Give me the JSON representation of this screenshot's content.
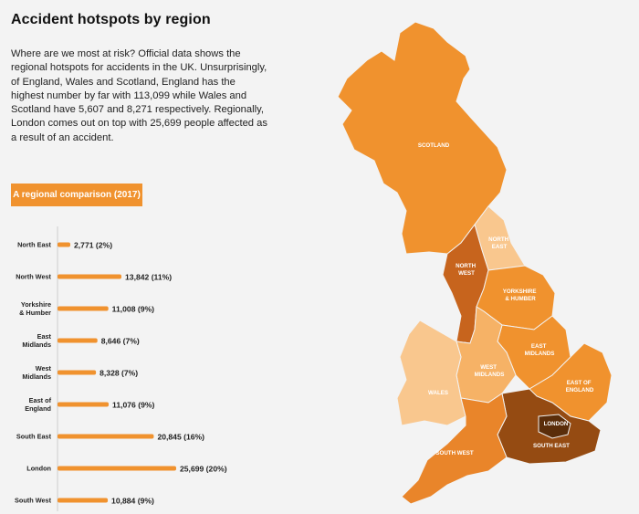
{
  "header": {
    "title": "Accident hotspots by region",
    "intro": "Where are we most at risk? Official data shows the regional hotspots for accidents in the UK. Unsurprisingly, of England, Wales and Scotland, England has the highest number by far with 113,099 while Wales and Scotland have 5,607 and 8,271 respectively. Regionally, London comes out on top with 25,699 people affected as a result of an accident.",
    "badge": "A regional comparison (2017)"
  },
  "colors": {
    "bar": "#f0922e",
    "background": "#f3f3f3",
    "axis": "#cccccc"
  },
  "chart_data": [
    {
      "type": "bar",
      "orientation": "horizontal",
      "title": "A regional comparison (2017)",
      "categories": [
        [
          "North East"
        ],
        [
          "North West"
        ],
        [
          "Yorkshire",
          "& Humber"
        ],
        [
          "East",
          "Midlands"
        ],
        [
          "West",
          "Midlands"
        ],
        [
          "East of",
          "England"
        ],
        [
          "South East"
        ],
        [
          "London"
        ],
        [
          "South West"
        ]
      ],
      "values": [
        2771,
        13842,
        11008,
        8646,
        8328,
        11076,
        20845,
        25699,
        10884
      ],
      "value_labels": [
        "2,771 (2%)",
        "13,842 (11%)",
        "11,008 (9%)",
        "8,646 (7%)",
        "8,328 (7%)",
        "11,076 (9%)",
        "20,845 (16%)",
        "25,699 (20%)",
        "10,884 (9%)"
      ]
    }
  ],
  "map": {
    "region_labels": {
      "scotland": "SCOTLAND",
      "north_east": [
        "NORTH",
        "EAST"
      ],
      "north_west": [
        "NORTH",
        "WEST"
      ],
      "yorkshire": [
        "YORKSHIRE",
        "& HUMBER"
      ],
      "east_midlands": [
        "EAST",
        "MIDLANDS"
      ],
      "west_midlands": [
        "WEST",
        "MIDLANDS"
      ],
      "east_of_england": [
        "EAST OF",
        "ENGLAND"
      ],
      "wales": "WALES",
      "london": "LONDON",
      "south_east": "SOUTH EAST",
      "south_west": "SOUTH WEST"
    },
    "region_colors": {
      "scotland": "#f0922e",
      "north_east": "#f9c78e",
      "north_west": "#c7641d",
      "yorkshire": "#f0922e",
      "east_midlands": "#f0922e",
      "west_midlands": "#f6b266",
      "east_of_england": "#f0922e",
      "wales": "#f9c78e",
      "london": "#5a2d0a",
      "south_east": "#954b12",
      "south_west": "#e9852a"
    }
  }
}
